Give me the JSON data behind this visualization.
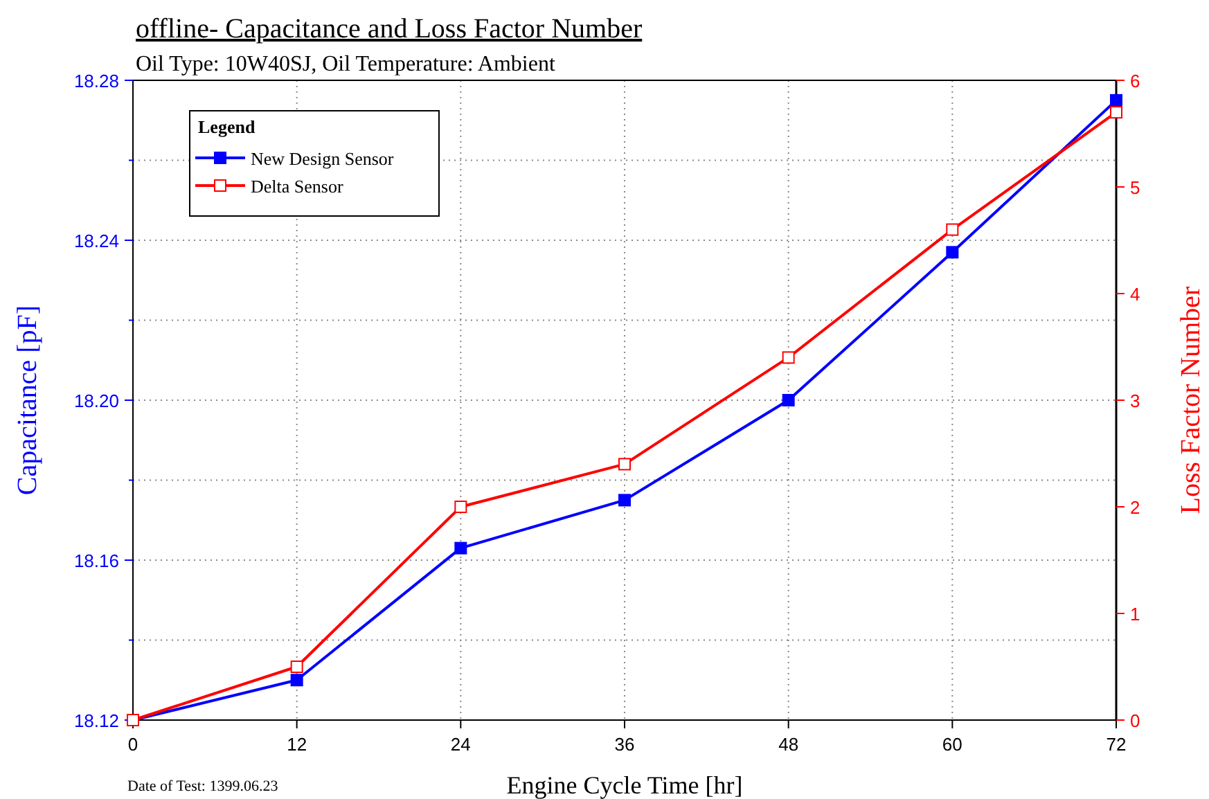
{
  "chart_data": {
    "type": "line",
    "title": "offline- Capacitance and Loss Factor Number",
    "subtitle": "Oil Type: 10W40SJ, Oil Temperature: Ambient",
    "xlabel": "Engine Cycle Time [hr]",
    "ylabel": "Capacitance [pF]",
    "y2label": "Loss Factor Number",
    "legend_title": "Legend",
    "legend": "top left",
    "grid": true,
    "marker": "square",
    "line_style": "solid",
    "x": [
      0,
      12,
      24,
      36,
      48,
      60,
      72
    ],
    "xlim": [
      0,
      72
    ],
    "xticks": [
      0,
      12,
      24,
      36,
      48,
      60,
      72
    ],
    "ylim": [
      18.12,
      18.28
    ],
    "yticks": [
      {
        "value": 18.12,
        "label": "18.12"
      },
      {
        "value": 18.14,
        "label": null
      },
      {
        "value": 18.16,
        "label": "18.16"
      },
      {
        "value": 18.18,
        "label": null
      },
      {
        "value": 18.2,
        "label": "18.20"
      },
      {
        "value": 18.22,
        "label": null
      },
      {
        "value": 18.24,
        "label": "18.24"
      },
      {
        "value": 18.26,
        "label": null
      },
      {
        "value": 18.28,
        "label": "18.28"
      }
    ],
    "y2lim": [
      0,
      6
    ],
    "y2ticks": [
      0,
      1,
      2,
      3,
      4,
      5,
      6
    ],
    "series": [
      {
        "name": "New Design Sensor",
        "color": "#0000ff",
        "values": [
          18.12,
          18.13,
          18.163,
          18.175,
          18.2,
          18.237,
          18.275
        ]
      },
      {
        "name": "Delta Sensor",
        "color": "#ff0000",
        "axis": "y2",
        "values": [
          0,
          0.5,
          2.0,
          2.4,
          3.4,
          4.6,
          5.7
        ]
      }
    ],
    "annotations": [
      "Date of Test: 1399.06.23"
    ]
  }
}
